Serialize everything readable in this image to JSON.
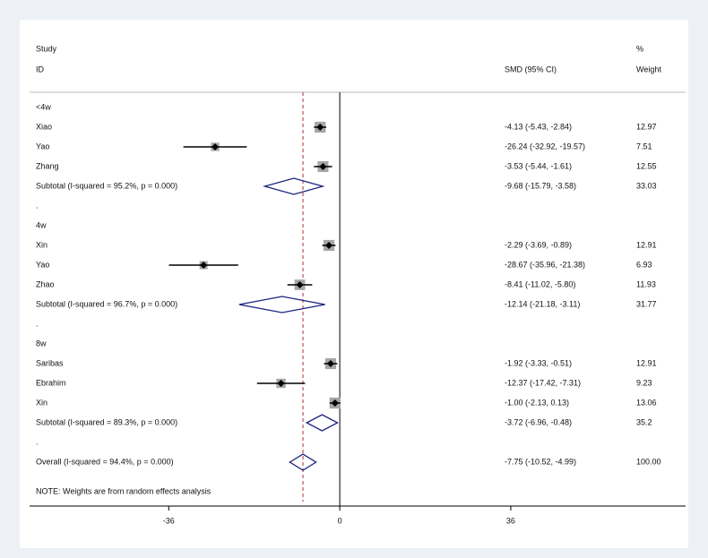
{
  "chart_data": {
    "type": "forest",
    "header": {
      "study": "Study",
      "id": "ID",
      "ci": "SMD (95% CI)",
      "pct": "%",
      "weight": "Weight"
    },
    "rows": [
      {
        "kind": "group",
        "label": "<4w"
      },
      {
        "kind": "study",
        "label": "Xiao",
        "estimate": -4.13,
        "lower": -5.43,
        "upper": -2.84,
        "ci_label": "-4.13 (-5.43, -2.84)",
        "weight": 12.97
      },
      {
        "kind": "study",
        "label": "Yao",
        "estimate": -26.24,
        "lower": -32.92,
        "upper": -19.57,
        "ci_label": "-26.24 (-32.92, -19.57)",
        "weight": 7.51
      },
      {
        "kind": "study",
        "label": "Zhang",
        "estimate": -3.53,
        "lower": -5.44,
        "upper": -1.61,
        "ci_label": "-3.53 (-5.44, -1.61)",
        "weight": 12.55
      },
      {
        "kind": "subtotal",
        "label": "Subtotal  (I-squared = 95.2%, p = 0.000)",
        "estimate": -9.68,
        "lower": -15.79,
        "upper": -3.58,
        "ci_label": "-9.68 (-15.79, -3.58)",
        "weight": 33.03
      },
      {
        "kind": "spacer",
        "label": "."
      },
      {
        "kind": "group",
        "label": "4w"
      },
      {
        "kind": "study",
        "label": "Xin",
        "estimate": -2.29,
        "lower": -3.69,
        "upper": -0.89,
        "ci_label": "-2.29 (-3.69, -0.89)",
        "weight": 12.91
      },
      {
        "kind": "study",
        "label": "Yao",
        "estimate": -28.67,
        "lower": -35.96,
        "upper": -21.38,
        "ci_label": "-28.67 (-35.96, -21.38)",
        "weight": 6.93
      },
      {
        "kind": "study",
        "label": "Zhao",
        "estimate": -8.41,
        "lower": -11.02,
        "upper": -5.8,
        "ci_label": "-8.41 (-11.02, -5.80)",
        "weight": 11.93
      },
      {
        "kind": "subtotal",
        "label": "Subtotal  (I-squared = 96.7%, p = 0.000)",
        "estimate": -12.14,
        "lower": -21.18,
        "upper": -3.11,
        "ci_label": "-12.14 (-21.18, -3.11)",
        "weight": 31.77
      },
      {
        "kind": "spacer",
        "label": "."
      },
      {
        "kind": "group",
        "label": "8w"
      },
      {
        "kind": "study",
        "label": "Saribas",
        "estimate": -1.92,
        "lower": -3.33,
        "upper": -0.51,
        "ci_label": "-1.92 (-3.33, -0.51)",
        "weight": 12.91
      },
      {
        "kind": "study",
        "label": "Ebrahim",
        "estimate": -12.37,
        "lower": -17.42,
        "upper": -7.31,
        "ci_label": "-12.37 (-17.42, -7.31)",
        "weight": 9.23
      },
      {
        "kind": "study",
        "label": "Xin",
        "estimate": -1.0,
        "lower": -2.13,
        "upper": 0.13,
        "ci_label": "-1.00 (-2.13, 0.13)",
        "weight": 13.06
      },
      {
        "kind": "subtotal",
        "label": "Subtotal  (I-squared = 89.3%, p = 0.000)",
        "estimate": -3.72,
        "lower": -6.96,
        "upper": -0.48,
        "ci_label": "-3.72 (-6.96, -0.48)",
        "weight": 35.2
      },
      {
        "kind": "spacer",
        "label": "."
      },
      {
        "kind": "overall",
        "label": "Overall  (I-squared = 94.4%, p = 0.000)",
        "estimate": -7.75,
        "lower": -10.52,
        "upper": -4.99,
        "ci_label": "-7.75 (-10.52, -4.99)",
        "weight": 100,
        "weight_label": "100.00"
      }
    ],
    "note": "NOTE: Weights are from random effects analysis",
    "xlim": [
      -65.3,
      72.8
    ],
    "xticks": [
      -36,
      0,
      36
    ]
  }
}
